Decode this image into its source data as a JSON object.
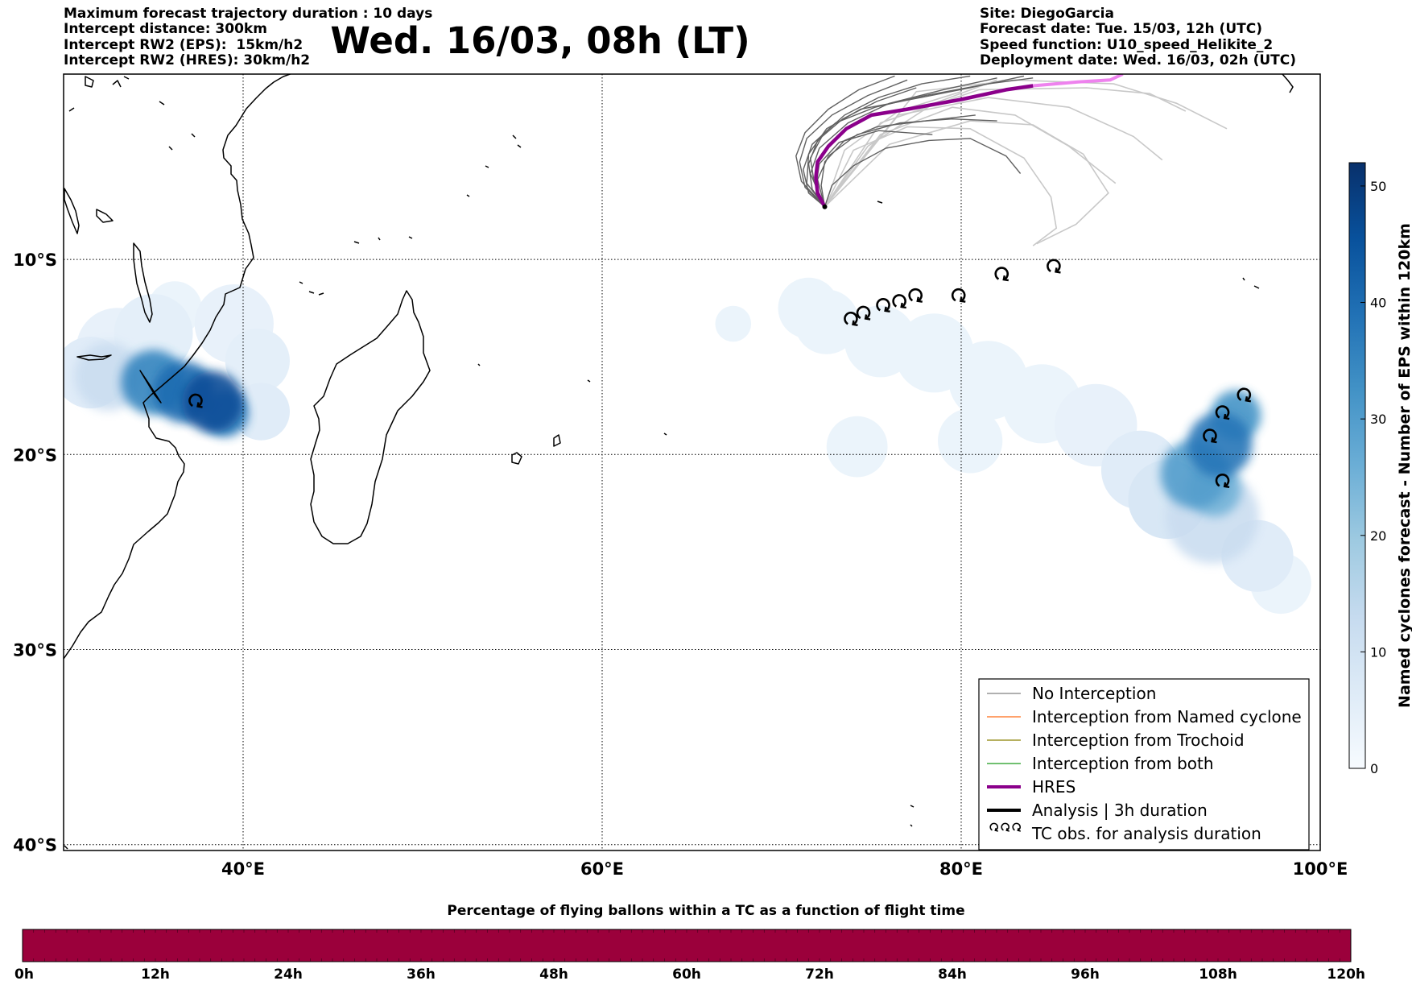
{
  "header_left": [
    "Maximum forecast trajectory duration : 10 days",
    "Intercept distance: 300km",
    "Intercept RW2 (EPS):  15km/h2",
    "Intercept RW2 (HRES): 30km/h2"
  ],
  "header_right": [
    "Site: DiegoGarcia",
    "Forecast date: Tue. 15/03, 12h (UTC)",
    "Speed function: U10_speed_Helikite_2",
    "Deployment date: Wed. 16/03, 02h (UTC)"
  ],
  "title": "Wed. 16/03, 08h (LT)",
  "map": {
    "lon_range": [
      30,
      100
    ],
    "lat_range": [
      -40.3,
      -0.5
    ],
    "lon_ticks": [
      {
        "value": 40,
        "label": "40°E"
      },
      {
        "value": 60,
        "label": "60°E"
      },
      {
        "value": 80,
        "label": "80°E"
      },
      {
        "value": 100,
        "label": "100°E"
      }
    ],
    "lat_ticks": [
      {
        "value": -10,
        "label": "10°S"
      },
      {
        "value": -20,
        "label": "20°S"
      },
      {
        "value": -30,
        "label": "30°S"
      },
      {
        "value": -40,
        "label": "40°S"
      }
    ],
    "grid": "dotted",
    "site": {
      "name": "DiegoGarcia",
      "lon": 72.4,
      "lat": -7.3
    },
    "hres_track": [
      [
        72.4,
        -7.3
      ],
      [
        72.0,
        -6.6
      ],
      [
        71.9,
        -5.8
      ],
      [
        72.0,
        -5.0
      ],
      [
        72.6,
        -4.2
      ],
      [
        73.6,
        -3.3
      ],
      [
        75.0,
        -2.6
      ],
      [
        77.0,
        -2.3
      ],
      [
        80.0,
        -1.8
      ],
      [
        82.5,
        -1.3
      ],
      [
        84.0,
        -1.1
      ]
    ],
    "hres_tail": [
      [
        84.0,
        -1.1
      ],
      [
        86.5,
        -0.9
      ],
      [
        88.3,
        -0.8
      ],
      [
        89.0,
        -0.5
      ]
    ],
    "eps_tracks": [
      [
        [
          72.4,
          -7.3
        ],
        [
          71.8,
          -6.0
        ],
        [
          71.6,
          -4.8
        ],
        [
          72.3,
          -3.6
        ],
        [
          73.5,
          -2.6
        ],
        [
          75.4,
          -1.7
        ],
        [
          77.8,
          -1.0
        ],
        [
          80.5,
          -0.6
        ]
      ],
      [
        [
          72.4,
          -7.3
        ],
        [
          71.3,
          -6.3
        ],
        [
          71.0,
          -5.0
        ],
        [
          71.4,
          -3.8
        ],
        [
          72.8,
          -2.6
        ],
        [
          74.8,
          -1.6
        ],
        [
          77.0,
          -0.8
        ]
      ],
      [
        [
          72.4,
          -7.3
        ],
        [
          71.5,
          -6.6
        ],
        [
          71.2,
          -5.4
        ],
        [
          71.7,
          -4.1
        ],
        [
          73.0,
          -3.0
        ],
        [
          75.2,
          -2.2
        ],
        [
          78.0,
          -1.6
        ],
        [
          81.5,
          -1.0
        ],
        [
          84.0,
          -0.7
        ]
      ],
      [
        [
          72.4,
          -7.3
        ],
        [
          72.2,
          -6.2
        ],
        [
          72.4,
          -5.0
        ],
        [
          73.5,
          -3.9
        ],
        [
          75.3,
          -3.2
        ],
        [
          78.0,
          -2.9
        ],
        [
          80.8,
          -2.6
        ]
      ],
      [
        [
          72.4,
          -7.3
        ],
        [
          71.1,
          -6.0
        ],
        [
          70.8,
          -4.7
        ],
        [
          71.3,
          -3.5
        ],
        [
          72.6,
          -2.3
        ],
        [
          74.3,
          -1.3
        ],
        [
          76.3,
          -0.6
        ]
      ],
      [
        [
          72.4,
          -7.3
        ],
        [
          71.9,
          -6.3
        ],
        [
          72.1,
          -5.1
        ],
        [
          73.2,
          -4.0
        ],
        [
          75.4,
          -3.4
        ],
        [
          78.4,
          -3.6
        ]
      ],
      [
        [
          72.4,
          -7.3
        ],
        [
          71.6,
          -5.6
        ],
        [
          72.1,
          -4.3
        ],
        [
          73.7,
          -3.0
        ],
        [
          76.0,
          -2.0
        ],
        [
          79.0,
          -1.3
        ],
        [
          82.0,
          -0.7
        ]
      ],
      [
        [
          72.4,
          -7.3
        ],
        [
          71.4,
          -6.1
        ],
        [
          71.5,
          -4.6
        ],
        [
          72.5,
          -3.3
        ],
        [
          74.4,
          -2.3
        ],
        [
          77.2,
          -1.8
        ],
        [
          80.5,
          -1.2
        ],
        [
          83.5,
          -0.6
        ]
      ],
      [
        [
          72.4,
          -7.3
        ],
        [
          72.8,
          -6.2
        ],
        [
          74.0,
          -5.2
        ],
        [
          75.8,
          -4.3
        ],
        [
          78.2,
          -3.9
        ],
        [
          80.5,
          -3.8
        ],
        [
          82.5,
          -4.7
        ],
        [
          83.3,
          -5.6
        ]
      ],
      [
        [
          72.4,
          -7.3
        ],
        [
          71.7,
          -6.4
        ],
        [
          71.5,
          -5.1
        ],
        [
          72.0,
          -3.9
        ],
        [
          73.4,
          -2.8
        ],
        [
          75.3,
          -1.9
        ],
        [
          77.5,
          -1.2
        ]
      ],
      [
        [
          72.4,
          -7.3
        ],
        [
          72.0,
          -5.9
        ],
        [
          72.6,
          -4.7
        ],
        [
          74.2,
          -3.6
        ],
        [
          76.6,
          -3.0
        ],
        [
          79.5,
          -2.8
        ],
        [
          82.0,
          -2.9
        ]
      ]
    ],
    "light_tracks": [
      [
        [
          72.4,
          -7.3
        ],
        [
          74.0,
          -4.4
        ],
        [
          77.0,
          -3.2
        ],
        [
          80.5,
          -3.3
        ],
        [
          83.5,
          -4.8
        ],
        [
          85.0,
          -6.8
        ],
        [
          85.3,
          -8.4
        ],
        [
          84.0,
          -9.3
        ]
      ],
      [
        [
          72.4,
          -7.3
        ],
        [
          75.5,
          -3.6
        ],
        [
          79.5,
          -2.2
        ],
        [
          83.0,
          -2.6
        ],
        [
          86.0,
          -4.2
        ],
        [
          88.6,
          -6.1
        ]
      ],
      [
        [
          72.4,
          -7.3
        ],
        [
          76.5,
          -2.6
        ],
        [
          81.5,
          -1.7
        ],
        [
          86.0,
          -2.2
        ],
        [
          89.6,
          -3.7
        ],
        [
          91.2,
          -4.9
        ]
      ],
      [
        [
          72.4,
          -7.3
        ],
        [
          77.5,
          -1.4
        ],
        [
          83.0,
          -0.8
        ],
        [
          88.5,
          -1.0
        ],
        [
          92.0,
          -2.0
        ],
        [
          94.8,
          -3.3
        ]
      ],
      [
        [
          72.4,
          -7.3
        ],
        [
          73.5,
          -4.4
        ],
        [
          76.5,
          -2.4
        ],
        [
          80.0,
          -1.4
        ]
      ],
      [
        [
          72.4,
          -7.3
        ],
        [
          74.8,
          -4.2
        ],
        [
          78.5,
          -2.0
        ],
        [
          82.0,
          -0.8
        ]
      ],
      [
        [
          72.4,
          -7.3
        ],
        [
          75.5,
          -3.0
        ],
        [
          81.0,
          -1.3
        ],
        [
          87.0,
          -1.2
        ],
        [
          90.5,
          -1.5
        ],
        [
          92.5,
          -2.4
        ]
      ],
      [
        [
          72.4,
          -7.3
        ],
        [
          76.0,
          -4.1
        ],
        [
          80.5,
          -2.9
        ],
        [
          84.0,
          -3.1
        ],
        [
          86.8,
          -4.6
        ],
        [
          88.2,
          -6.6
        ],
        [
          86.4,
          -8.2
        ],
        [
          84.2,
          -9.2
        ]
      ]
    ],
    "tc_obs": [
      [
        37.3,
        -17.8
      ],
      [
        73.8,
        -13.6
      ],
      [
        74.5,
        -13.3
      ],
      [
        75.6,
        -12.9
      ],
      [
        76.5,
        -12.7
      ],
      [
        77.4,
        -12.4
      ],
      [
        79.8,
        -12.4
      ],
      [
        82.2,
        -11.3
      ],
      [
        85.1,
        -10.9
      ],
      [
        93.8,
        -19.6
      ],
      [
        94.5,
        -18.4
      ],
      [
        95.7,
        -17.5
      ],
      [
        94.5,
        -21.9
      ]
    ],
    "density_blobs": [
      {
        "lon": 33.0,
        "lat": -14.6,
        "r": 2.3,
        "v": 4
      },
      {
        "lon": 31.5,
        "lat": -15.8,
        "r": 2.0,
        "v": 6
      },
      {
        "lon": 35.0,
        "lat": -13.8,
        "r": 2.2,
        "v": 5
      },
      {
        "lon": 39.5,
        "lat": -13.3,
        "r": 2.2,
        "v": 4
      },
      {
        "lon": 40.8,
        "lat": -15.2,
        "r": 1.8,
        "v": 5
      },
      {
        "lon": 41.0,
        "lat": -17.8,
        "r": 1.6,
        "v": 6
      },
      {
        "lon": 36.2,
        "lat": -12.5,
        "r": 1.5,
        "v": 3
      },
      {
        "lon": 32.5,
        "lat": -16.0,
        "r": 1.9,
        "v": 12
      },
      {
        "lon": 35.0,
        "lat": -16.3,
        "r": 1.8,
        "v": 35
      },
      {
        "lon": 36.7,
        "lat": -16.8,
        "r": 1.7,
        "v": 40
      },
      {
        "lon": 38.3,
        "lat": -17.3,
        "r": 1.7,
        "v": 46
      },
      {
        "lon": 39.0,
        "lat": -17.9,
        "r": 1.3,
        "v": 36
      },
      {
        "lon": 67.3,
        "lat": -13.3,
        "r": 1.0,
        "v": 2
      },
      {
        "lon": 71.5,
        "lat": -12.5,
        "r": 1.7,
        "v": 2
      },
      {
        "lon": 72.5,
        "lat": -13.2,
        "r": 1.8,
        "v": 2
      },
      {
        "lon": 75.5,
        "lat": -14.2,
        "r": 2.0,
        "v": 3
      },
      {
        "lon": 78.5,
        "lat": -14.8,
        "r": 2.2,
        "v": 3
      },
      {
        "lon": 81.5,
        "lat": -16.2,
        "r": 2.2,
        "v": 3
      },
      {
        "lon": 84.5,
        "lat": -17.4,
        "r": 2.2,
        "v": 3
      },
      {
        "lon": 87.5,
        "lat": -18.5,
        "r": 2.3,
        "v": 4
      },
      {
        "lon": 74.2,
        "lat": -19.6,
        "r": 1.7,
        "v": 2
      },
      {
        "lon": 80.5,
        "lat": -19.3,
        "r": 1.8,
        "v": 2
      },
      {
        "lon": 90.0,
        "lat": -20.8,
        "r": 2.2,
        "v": 6
      },
      {
        "lon": 91.5,
        "lat": -22.3,
        "r": 2.2,
        "v": 8
      },
      {
        "lon": 94.0,
        "lat": -23.2,
        "r": 2.6,
        "v": 12
      },
      {
        "lon": 96.5,
        "lat": -25.2,
        "r": 2.0,
        "v": 6
      },
      {
        "lon": 97.8,
        "lat": -26.6,
        "r": 1.7,
        "v": 3
      },
      {
        "lon": 93.0,
        "lat": -21.0,
        "r": 1.9,
        "v": 30
      },
      {
        "lon": 94.4,
        "lat": -19.5,
        "r": 1.8,
        "v": 38
      },
      {
        "lon": 95.3,
        "lat": -18.0,
        "r": 1.4,
        "v": 32
      },
      {
        "lon": 94.1,
        "lat": -21.8,
        "r": 1.5,
        "v": 25
      }
    ]
  },
  "legend": {
    "items": [
      {
        "label": "No Interception",
        "color": "#808080",
        "width": 1.2,
        "kind": "line"
      },
      {
        "label": "Interception from Named cyclone",
        "color": "#ff6a14",
        "width": 1.2,
        "kind": "line"
      },
      {
        "label": "Interception from Trochoid",
        "color": "#8b8000",
        "width": 1.2,
        "kind": "line"
      },
      {
        "label": "Interception from both",
        "color": "#1a9a1a",
        "width": 1.2,
        "kind": "line"
      },
      {
        "label": "HRES",
        "color": "#8b008b",
        "width": 4,
        "kind": "line"
      },
      {
        "label": "Analysis | 3h duration",
        "color": "#000000",
        "width": 4,
        "kind": "line"
      },
      {
        "label": "TC obs. for analysis duration",
        "color": "#000000",
        "width": 1,
        "kind": "symbol"
      }
    ]
  },
  "colorbar": {
    "label": "Named cyclones forecast - Number of EPS within 120km",
    "min": 0,
    "max": 52,
    "ticks": [
      0,
      10,
      20,
      30,
      40,
      50
    ],
    "colormap": "Blues"
  },
  "flight_bar": {
    "title": "Percentage of flying ballons within a TC as a function of flight time",
    "ticks": [
      "0h",
      "12h",
      "24h",
      "36h",
      "48h",
      "60h",
      "72h",
      "84h",
      "96h",
      "108h",
      "120h"
    ],
    "fill_color": "#9b003b"
  },
  "colors": {
    "eps_track": "#616161",
    "light_track": "#c8c8c8",
    "hres": "#8b008b",
    "hres_tail": "#ee82ee",
    "coast": "#000000"
  }
}
